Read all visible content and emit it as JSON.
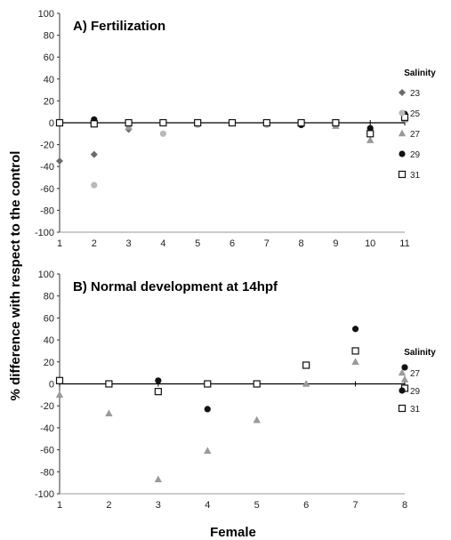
{
  "ylabel": "% difference with respect to the control",
  "xlabel": "Female",
  "series_styles": {
    "23": {
      "marker": "diamond",
      "color": "#6b6b6b"
    },
    "25": {
      "marker": "circle",
      "color": "#b9b9b9"
    },
    "27": {
      "marker": "triangle",
      "color": "#9a9a9a"
    },
    "29": {
      "marker": "circle",
      "color": "#111111"
    },
    "31": {
      "marker": "square-open",
      "color": "#111111"
    }
  },
  "chart_data": [
    {
      "type": "scatter",
      "title": "A) Fertilization",
      "xlim": [
        1,
        11
      ],
      "ylim": [
        -100,
        100
      ],
      "x_ticks": [
        1,
        2,
        3,
        4,
        5,
        6,
        7,
        8,
        9,
        10,
        11
      ],
      "y_ticks": [
        100,
        80,
        60,
        40,
        20,
        0,
        -20,
        -40,
        -60,
        -80,
        -100
      ],
      "legend_title": "Salinity",
      "legend_position": "right",
      "series": [
        {
          "name": "23",
          "points": [
            [
              1,
              -35
            ],
            [
              2,
              -29
            ],
            [
              3,
              -6
            ]
          ]
        },
        {
          "name": "25",
          "points": [
            [
              2,
              -57
            ],
            [
              3,
              -3
            ],
            [
              4,
              -10
            ],
            [
              5,
              -2
            ],
            [
              7,
              -2
            ],
            [
              8,
              -2
            ],
            [
              9,
              -2
            ]
          ]
        },
        {
          "name": "27",
          "points": [
            [
              3,
              -4
            ],
            [
              8,
              -1
            ],
            [
              9,
              -3
            ],
            [
              10,
              -16
            ],
            [
              11,
              3
            ]
          ]
        },
        {
          "name": "29",
          "points": [
            [
              2,
              3
            ],
            [
              8,
              -2
            ],
            [
              10,
              -5
            ],
            [
              11,
              8
            ]
          ]
        },
        {
          "name": "31",
          "points": [
            [
              1,
              0
            ],
            [
              2,
              -1
            ],
            [
              3,
              0
            ],
            [
              4,
              0
            ],
            [
              5,
              0
            ],
            [
              6,
              0
            ],
            [
              7,
              0
            ],
            [
              8,
              0
            ],
            [
              9,
              0
            ],
            [
              10,
              -10
            ],
            [
              11,
              5
            ]
          ]
        }
      ]
    },
    {
      "type": "scatter",
      "title": "B) Normal development at 14hpf",
      "xlim": [
        1,
        8
      ],
      "ylim": [
        -100,
        100
      ],
      "x_ticks": [
        1,
        2,
        3,
        4,
        5,
        6,
        7,
        8
      ],
      "y_ticks": [
        100,
        80,
        60,
        40,
        20,
        0,
        -20,
        -40,
        -60,
        -80,
        -100
      ],
      "legend_title": "Salinity",
      "legend_position": "right",
      "series": [
        {
          "name": "27",
          "points": [
            [
              1,
              -10
            ],
            [
              2,
              -27
            ],
            [
              3,
              -87
            ],
            [
              4,
              -61
            ],
            [
              5,
              -33
            ],
            [
              6,
              0
            ],
            [
              7,
              20
            ],
            [
              8,
              4
            ]
          ]
        },
        {
          "name": "29",
          "points": [
            [
              3,
              3
            ],
            [
              4,
              -23
            ],
            [
              7,
              50
            ],
            [
              8,
              15
            ]
          ]
        },
        {
          "name": "31",
          "points": [
            [
              1,
              3
            ],
            [
              2,
              0
            ],
            [
              3,
              -7
            ],
            [
              4,
              0
            ],
            [
              5,
              0
            ],
            [
              6,
              17
            ],
            [
              7,
              30
            ],
            [
              8,
              -4
            ]
          ]
        }
      ]
    }
  ]
}
